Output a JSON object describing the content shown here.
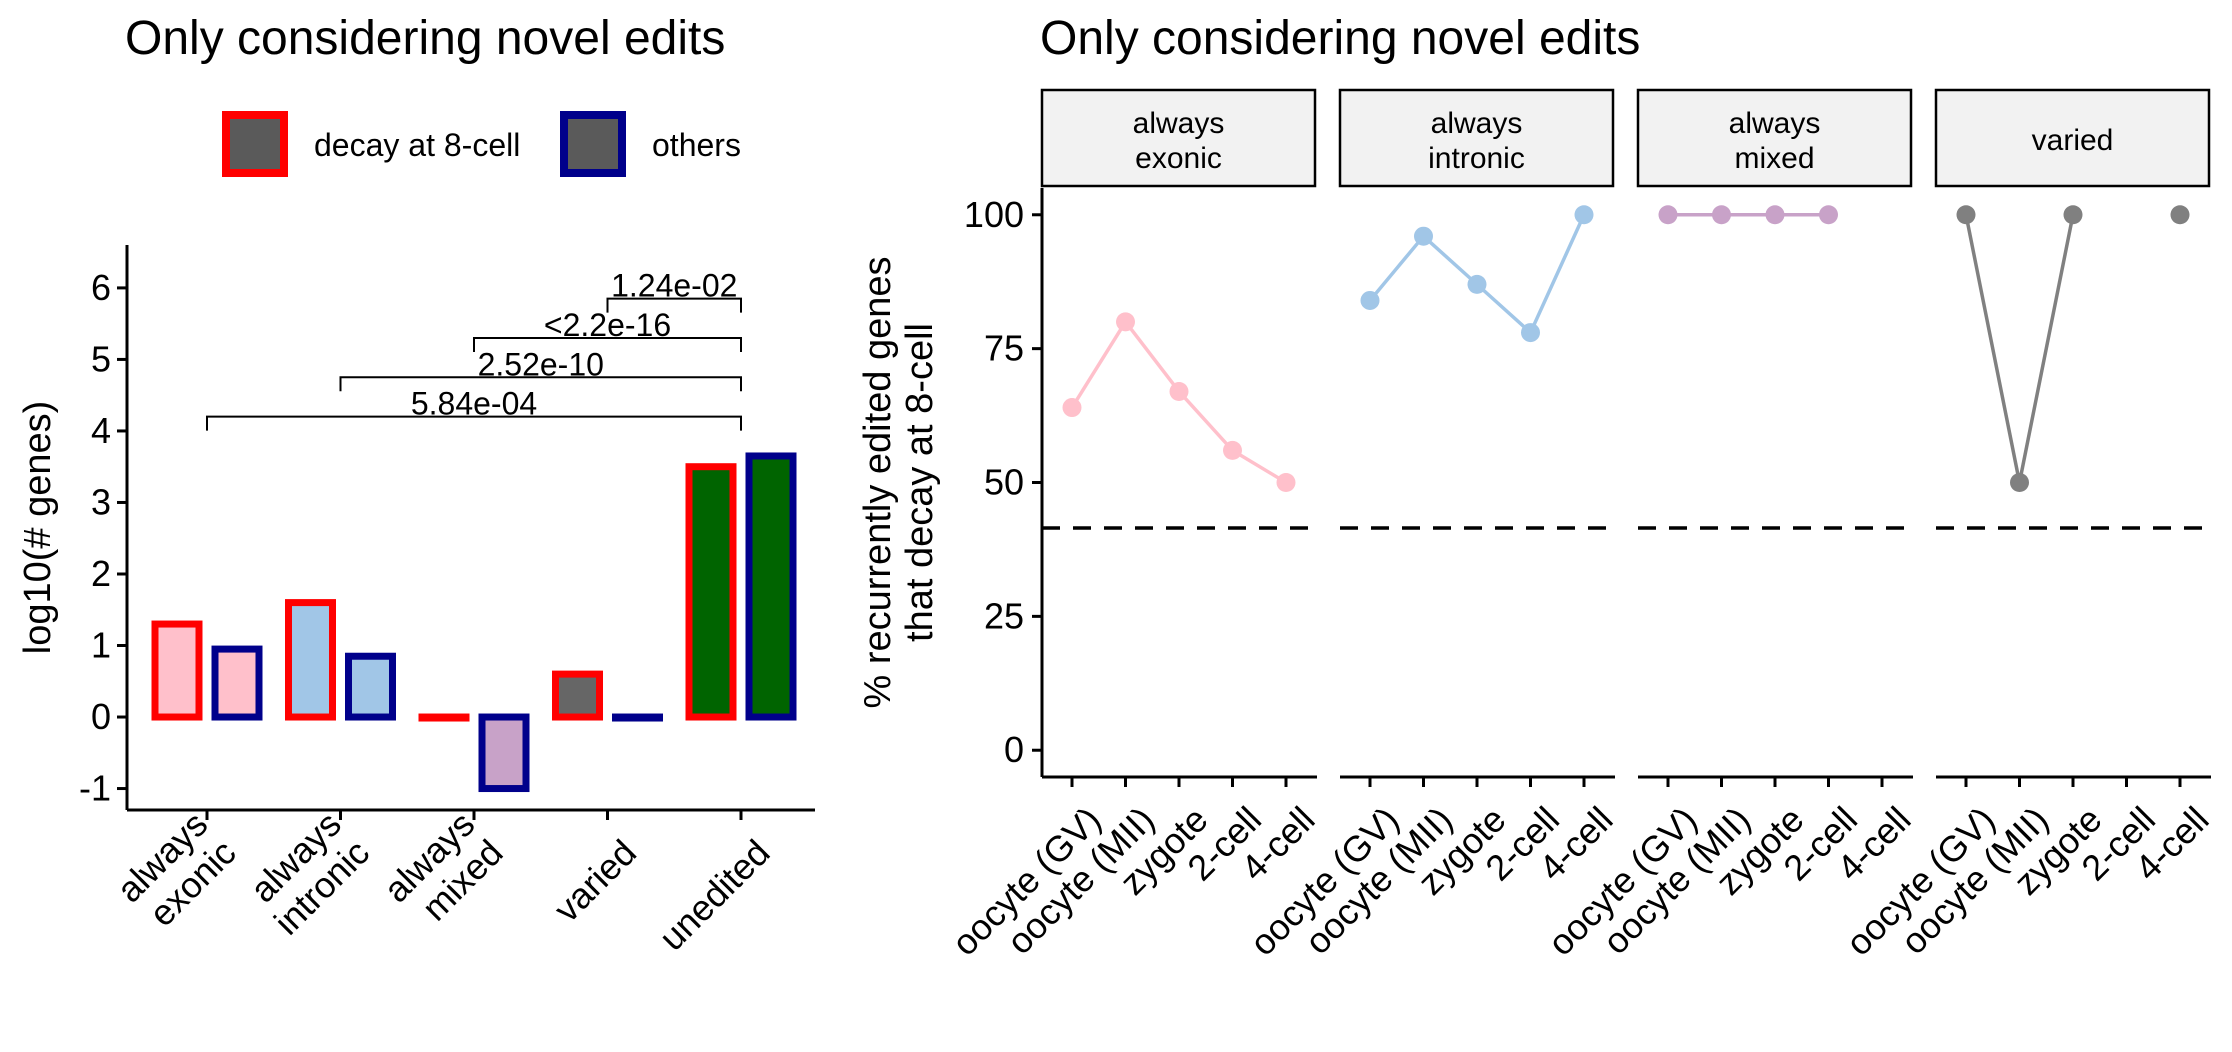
{
  "chart_data": [
    {
      "type": "bar",
      "title": "Only considering novel edits",
      "xlabel": "",
      "ylabel": "log10(# genes)",
      "ylim": [
        -1.3,
        6.6
      ],
      "yticks": [
        -1,
        0,
        1,
        2,
        3,
        4,
        5,
        6
      ],
      "grid": false,
      "legend_position": "top",
      "categories": [
        "always\nexonic",
        "always\nintronic",
        "always\nmixed",
        "varied",
        "unedited"
      ],
      "series": [
        {
          "name": "decay at 8-cell",
          "border_color": "#ff0000",
          "values": [
            1.3,
            1.6,
            0.0,
            0.6,
            3.5
          ],
          "fill_colors": [
            "#ffc0cb",
            "#a1c6e7",
            "#c8a2c8",
            "#666666",
            "#006400"
          ]
        },
        {
          "name": "others",
          "border_color": "#00008b",
          "values": [
            0.95,
            0.85,
            -1.0,
            0.0,
            3.65
          ],
          "fill_colors": [
            "#ffc0cb",
            "#a1c6e7",
            "#c8a2c8",
            "#666666",
            "#006400"
          ]
        }
      ],
      "legend_fill": "#5a5a5a",
      "comparisons": [
        {
          "from": "always\nexonic",
          "to": "unedited",
          "label": "5.84e-04",
          "y": 4.2
        },
        {
          "from": "always\nintronic",
          "to": "unedited",
          "label": "2.52e-10",
          "y": 4.75
        },
        {
          "from": "always\nmixed",
          "to": "unedited",
          "label": "<2.2e-16",
          "y": 5.3
        },
        {
          "from": "varied",
          "to": "unedited",
          "label": "1.24e-02",
          "y": 5.85
        }
      ]
    },
    {
      "type": "line",
      "title": "Only considering novel edits",
      "xlabel": "",
      "ylabel": "% recurrently edited genes\nthat decay at 8-cell",
      "ylim": [
        -5,
        105
      ],
      "yticks": [
        0,
        25,
        50,
        75,
        100
      ],
      "grid": false,
      "reference_line": 41.5,
      "x": [
        "oocyte (GV)",
        "oocyte (MII)",
        "zygote",
        "2-cell",
        "4-cell"
      ],
      "facets": [
        {
          "label": "always\nexonic",
          "color": "#ffc0cb",
          "values": [
            64,
            80,
            67,
            56,
            50
          ]
        },
        {
          "label": "always\nintronic",
          "color": "#a1c6e7",
          "values": [
            84,
            96,
            87,
            78,
            100
          ]
        },
        {
          "label": "always\nmixed",
          "color": "#c8a2c8",
          "values": [
            100,
            100,
            100,
            100,
            null
          ]
        },
        {
          "label": "varied",
          "color": "#808080",
          "values": [
            100,
            50,
            100,
            null,
            100
          ]
        }
      ]
    }
  ]
}
